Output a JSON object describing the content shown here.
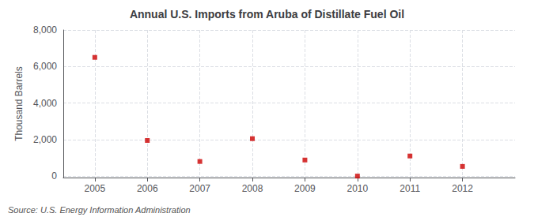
{
  "chart_data": {
    "type": "scatter",
    "title": "Annual U.S. Imports from Aruba of Distillate Fuel Oil",
    "ylabel": "Thousand Barrels",
    "annotations": [
      "Source: U.S. Energy Information Administration"
    ],
    "x": [
      2005,
      2006,
      2007,
      2008,
      2009,
      2010,
      2011,
      2012
    ],
    "values": [
      6500,
      1950,
      800,
      2050,
      880,
      0,
      1100,
      530
    ],
    "xlim": [
      2004.4,
      2013.0
    ],
    "ylim": [
      -80,
      8000
    ],
    "xticks": [
      2005,
      2006,
      2007,
      2008,
      2009,
      2010,
      2011,
      2012
    ],
    "yticks": [
      0,
      {
        "value": 2000,
        "label": "2,000"
      },
      {
        "value": 4000,
        "label": "4,000"
      },
      {
        "value": 6000,
        "label": "6,000"
      },
      {
        "value": 8000,
        "label": "8,000"
      }
    ],
    "color": "#cc0000",
    "marker": "square",
    "grid": true
  }
}
